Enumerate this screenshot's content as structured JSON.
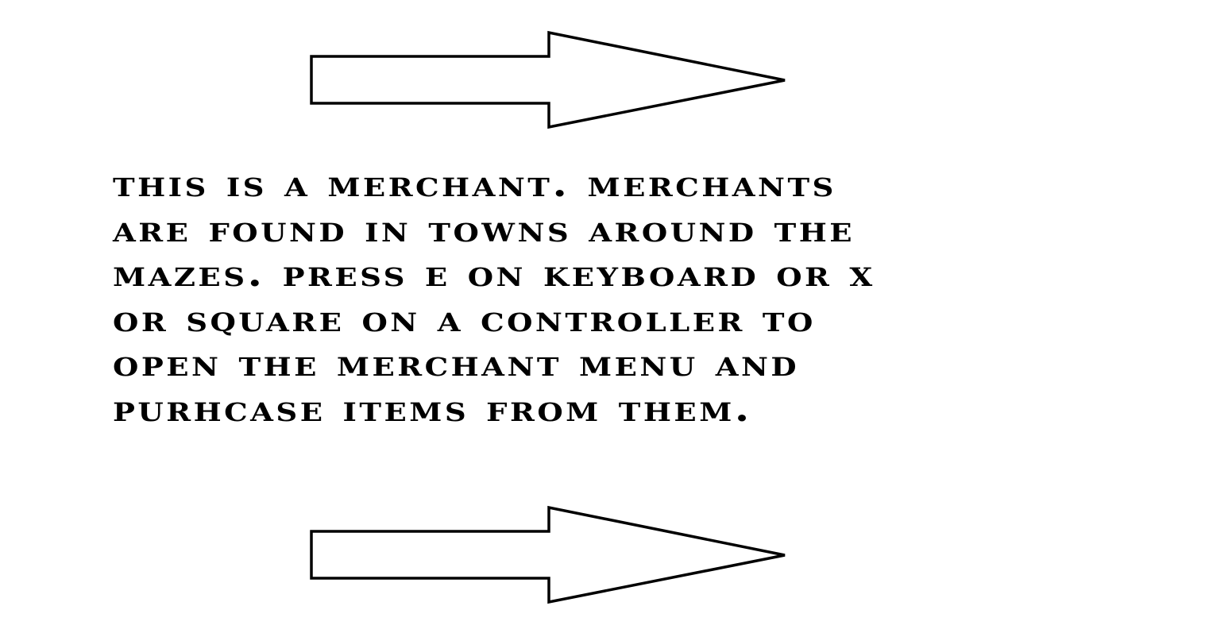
{
  "tutorial": {
    "lines": [
      "THIS IS A MERCHANT. MERCHANTS",
      "ARE FOUND IN TOWNS AROUND THE",
      "MAZES. PRESS E ON KEYBOARD OR X",
      "OR SQUARE ON A CONTROLLER TO",
      "OPEN THE MERCHANT MENU AND",
      "PURHCASE ITEMS FROM THEM."
    ]
  },
  "arrows": {
    "top_icon": "right-arrow-icon",
    "bottom_icon": "right-arrow-icon"
  },
  "colors": {
    "background": "#ffffff",
    "foreground": "#000000"
  }
}
